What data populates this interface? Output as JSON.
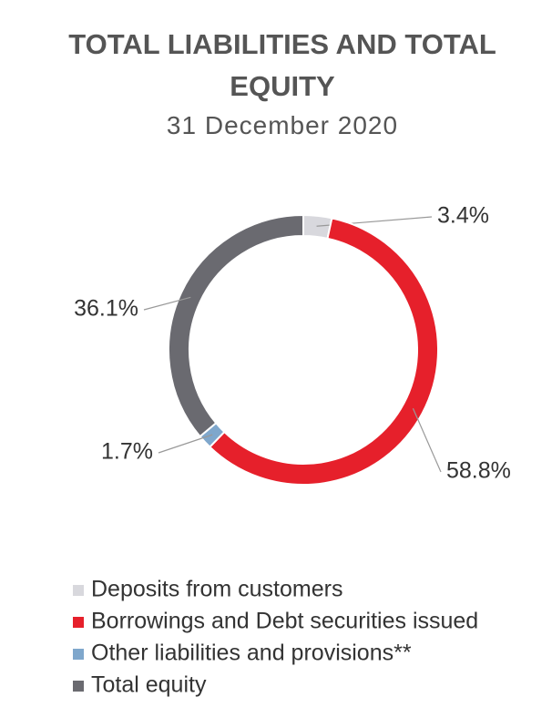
{
  "chart_data": {
    "type": "donut",
    "title": "TOTAL LIABILITIES AND TOTAL EQUITY",
    "subtitle": "31 December 2020",
    "categories": [
      "Deposits from customers",
      "Borrowings and Debt securities issued",
      "Other liabilities and provisions**",
      "Total equity"
    ],
    "values": [
      3.4,
      58.8,
      1.7,
      36.1
    ],
    "value_labels": [
      "3.4%",
      "58.8%",
      "1.7%",
      "36.1%"
    ],
    "colors": [
      "#d8d8dd",
      "#e6202b",
      "#7fa7cc",
      "#6a6a70"
    ],
    "legend": "bottom"
  }
}
